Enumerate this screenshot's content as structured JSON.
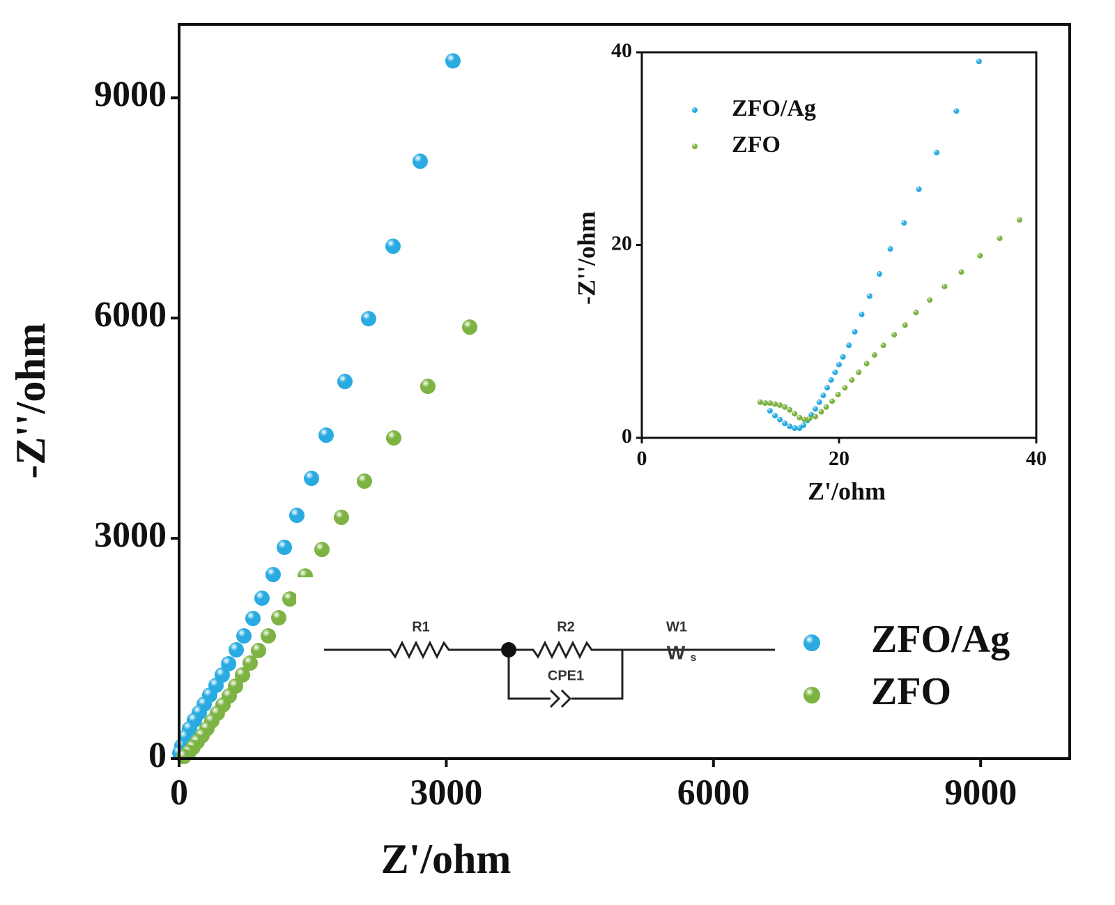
{
  "chart_data": [
    {
      "type": "scatter",
      "x_label": "Z'/ohm",
      "y_label": "-Z''/ohm",
      "xlim": [
        0,
        10000
      ],
      "ylim": [
        0,
        10000
      ],
      "xticks": [
        0,
        3000,
        6000,
        9000
      ],
      "yticks": [
        0,
        3000,
        6000,
        9000
      ],
      "legend": "lower right",
      "annotations": [
        "R1",
        "R2",
        "W1",
        "CPE1",
        "W",
        "s"
      ],
      "series": [
        {
          "name": "ZFO/Ag",
          "color": "#29abe2",
          "x": [
            3075,
            2707,
            2402,
            2128,
            1862,
            1651,
            1487,
            1322,
            1182,
            1056,
            931,
            829,
            728,
            642,
            556,
            485,
            415,
            344,
            282,
            227,
            172,
            117,
            70,
            31,
            8
          ],
          "y": [
            9503,
            8136,
            6978,
            5991,
            5136,
            4405,
            3817,
            3313,
            2877,
            2506,
            2184,
            1908,
            1671,
            1481,
            1291,
            1139,
            997,
            864,
            741,
            627,
            522,
            408,
            294,
            171,
            76
          ]
        },
        {
          "name": "ZFO",
          "color": "#7cb342",
          "x": [
            3263,
            2793,
            2410,
            2081,
            1823,
            1604,
            1416,
            1244,
            1119,
            1002,
            892,
            798,
            712,
            634,
            563,
            493,
            430,
            368,
            313,
            258,
            203,
            156,
            110,
            55
          ],
          "y": [
            5877,
            5070,
            4367,
            3779,
            3285,
            2848,
            2487,
            2174,
            1918,
            1671,
            1472,
            1301,
            1139,
            987,
            854,
            731,
            617,
            513,
            408,
            313,
            228,
            152,
            85,
            28
          ]
        }
      ]
    },
    {
      "type": "scatter",
      "x_label": "Z'/ohm",
      "y_label": "-Z''/ohm",
      "xlim": [
        0,
        40
      ],
      "ylim": [
        0,
        40
      ],
      "xticks": [
        0,
        20,
        40
      ],
      "yticks": [
        0,
        20,
        40
      ],
      "legend": "upper left",
      "series": [
        {
          "name": "ZFO/Ag",
          "color": "#29abe2",
          "x": [
            34.2,
            31.9,
            29.9,
            28.1,
            26.6,
            25.2,
            24.1,
            23.1,
            22.3,
            21.6,
            21.0,
            20.4,
            20.0,
            19.6,
            19.2,
            18.8,
            18.4,
            18.0,
            17.6,
            17.2,
            16.8,
            16.4,
            16.0,
            15.5,
            15.0,
            14.5,
            14.0,
            13.5,
            13.0
          ],
          "y": [
            39.05,
            33.9,
            29.6,
            25.8,
            22.3,
            19.6,
            17.0,
            14.7,
            12.8,
            11.0,
            9.6,
            8.4,
            7.6,
            6.8,
            6.0,
            5.2,
            4.4,
            3.7,
            3.0,
            2.4,
            1.8,
            1.3,
            1.0,
            1.0,
            1.2,
            1.5,
            1.9,
            2.3,
            2.8
          ]
        },
        {
          "name": "ZFO",
          "color": "#7cb342",
          "x": [
            38.3,
            36.3,
            34.3,
            32.4,
            30.7,
            29.2,
            27.8,
            26.7,
            25.6,
            24.5,
            23.6,
            22.8,
            22.0,
            21.3,
            20.6,
            19.9,
            19.3,
            18.7,
            18.2,
            17.6,
            17.0,
            16.5,
            16.0,
            15.5,
            15.0,
            14.5,
            14.0,
            13.5,
            13.0,
            12.5,
            12.0
          ],
          "y": [
            22.6,
            20.7,
            18.9,
            17.2,
            15.7,
            14.3,
            13.0,
            11.7,
            10.7,
            9.6,
            8.6,
            7.7,
            6.8,
            6.0,
            5.2,
            4.5,
            3.8,
            3.2,
            2.7,
            2.2,
            2.0,
            1.9,
            2.1,
            2.5,
            2.9,
            3.2,
            3.4,
            3.5,
            3.6,
            3.6,
            3.7
          ]
        }
      ]
    }
  ]
}
